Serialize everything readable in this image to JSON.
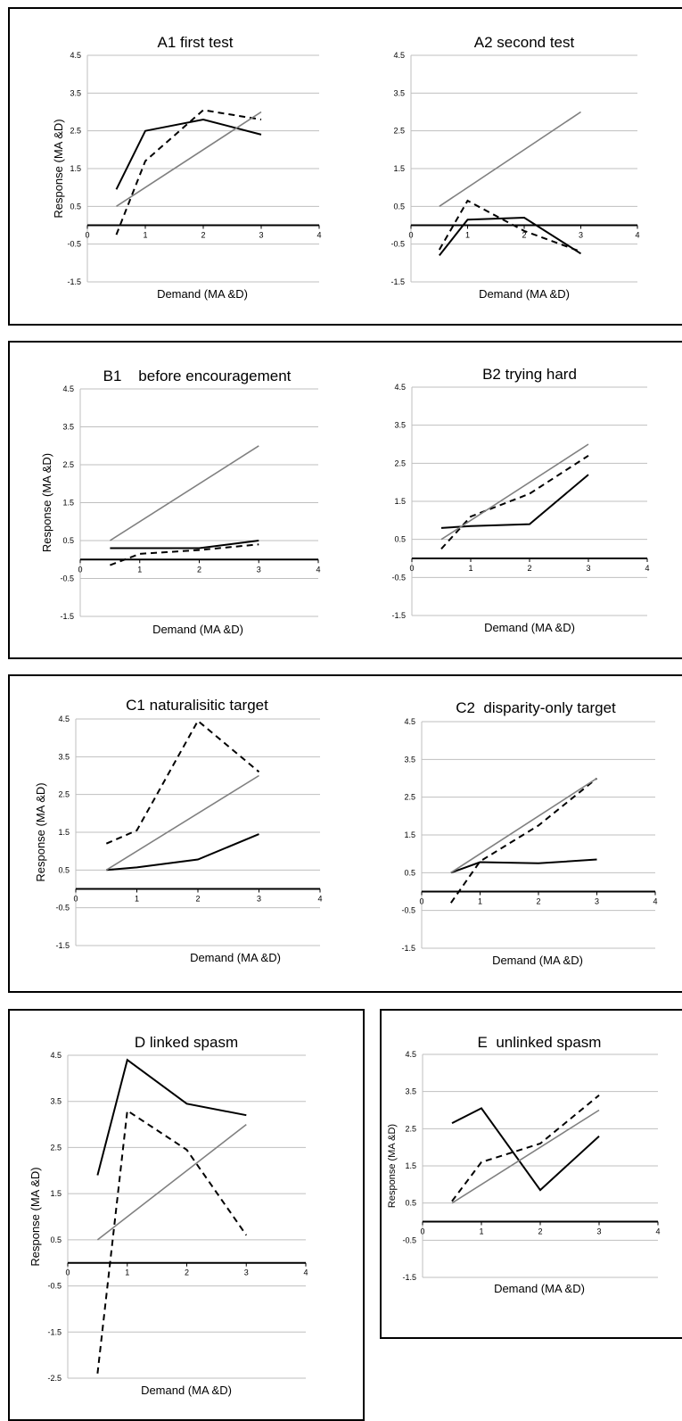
{
  "colors": {
    "series_solid": "#000000",
    "series_dashed": "#000000",
    "series_reference": "#808080",
    "gridline": "#bfbfbf"
  },
  "chart_data": [
    {
      "panel": "A",
      "type": "line",
      "title": "A1 first test",
      "xlabel": "Demand (MA &D)",
      "ylabel": "Response (MA &D)",
      "xlim": [
        0,
        4
      ],
      "ylim": [
        -1.5,
        4.5
      ],
      "x_ticks": [
        "0",
        "1",
        "2",
        "3",
        "4"
      ],
      "y_ticks": [
        "4.5",
        "3.5",
        "2.5",
        "1.5",
        "0.5",
        "-0.5",
        "-1.5"
      ],
      "series": [
        {
          "style": "solid",
          "x": [
            0.5,
            1,
            2,
            3
          ],
          "y": [
            0.95,
            2.5,
            2.8,
            2.4
          ]
        },
        {
          "style": "dashed",
          "x": [
            0.5,
            1,
            2,
            3
          ],
          "y": [
            -0.25,
            1.7,
            3.05,
            2.8
          ]
        },
        {
          "style": "reference",
          "x": [
            0.5,
            3
          ],
          "y": [
            0.5,
            3.0
          ]
        }
      ]
    },
    {
      "panel": "A",
      "type": "line",
      "title": "A2 second test",
      "xlabel": "Demand (MA &D)",
      "ylabel": "",
      "xlim": [
        0,
        4
      ],
      "ylim": [
        -1.5,
        4.5
      ],
      "x_ticks": [
        "0",
        "1",
        "2",
        "3",
        "4"
      ],
      "y_ticks": [
        "4.5",
        "3.5",
        "2.5",
        "1.5",
        "0.5",
        "-0.5",
        "-1.5"
      ],
      "series": [
        {
          "style": "solid",
          "x": [
            0.5,
            1,
            2,
            3
          ],
          "y": [
            -0.8,
            0.15,
            0.2,
            -0.75
          ]
        },
        {
          "style": "dashed",
          "x": [
            0.5,
            1,
            2,
            3
          ],
          "y": [
            -0.65,
            0.65,
            -0.15,
            -0.7
          ]
        },
        {
          "style": "reference",
          "x": [
            0.5,
            3
          ],
          "y": [
            0.5,
            3.0
          ]
        }
      ]
    },
    {
      "panel": "B",
      "type": "line",
      "title": "B1    before encouragement",
      "xlabel": "Demand (MA &D)",
      "ylabel": "Response (MA &D)",
      "xlim": [
        0,
        4
      ],
      "ylim": [
        -1.5,
        4.5
      ],
      "x_ticks": [
        "0",
        "1",
        "2",
        "3",
        "4"
      ],
      "y_ticks": [
        "4.5",
        "3.5",
        "2.5",
        "1.5",
        "0.5",
        "-0.5",
        "-1.5"
      ],
      "series": [
        {
          "style": "solid",
          "x": [
            0.5,
            1,
            2,
            3
          ],
          "y": [
            0.3,
            0.3,
            0.3,
            0.5
          ]
        },
        {
          "style": "dashed",
          "x": [
            0.5,
            1,
            2,
            3
          ],
          "y": [
            -0.15,
            0.15,
            0.25,
            0.4
          ]
        },
        {
          "style": "reference",
          "x": [
            0.5,
            3
          ],
          "y": [
            0.5,
            3.0
          ]
        }
      ]
    },
    {
      "panel": "B",
      "type": "line",
      "title": "B2 trying hard",
      "xlabel": "Demand (MA &D)",
      "ylabel": "",
      "xlim": [
        0,
        4
      ],
      "ylim": [
        -1.5,
        4.5
      ],
      "x_ticks": [
        "0",
        "1",
        "2",
        "3",
        "4"
      ],
      "y_ticks": [
        "4.5",
        "3.5",
        "2.5",
        "1.5",
        "0.5",
        "-0.5",
        "-1.5"
      ],
      "series": [
        {
          "style": "solid",
          "x": [
            0.5,
            1,
            2,
            3
          ],
          "y": [
            0.8,
            0.85,
            0.9,
            2.2
          ]
        },
        {
          "style": "dashed",
          "x": [
            0.5,
            1,
            2,
            3
          ],
          "y": [
            0.25,
            1.1,
            1.7,
            2.7
          ]
        },
        {
          "style": "reference",
          "x": [
            0.5,
            3
          ],
          "y": [
            0.5,
            3.0
          ]
        }
      ]
    },
    {
      "panel": "C",
      "type": "line",
      "title": "C1 naturalisitic target",
      "xlabel": "Demand (MA &D)",
      "ylabel": "Response (MA &D)",
      "xlim": [
        0,
        4
      ],
      "ylim": [
        -1.5,
        4.5
      ],
      "x_ticks": [
        "0",
        "1",
        "2",
        "3",
        "4"
      ],
      "y_ticks": [
        "4.5",
        "3.5",
        "2.5",
        "1.5",
        "0.5",
        "-0.5",
        "-1.5"
      ],
      "series": [
        {
          "style": "solid",
          "x": [
            0.5,
            1,
            2,
            3
          ],
          "y": [
            0.5,
            0.57,
            0.78,
            1.45
          ]
        },
        {
          "style": "dashed",
          "x": [
            0.5,
            1,
            2,
            3
          ],
          "y": [
            1.2,
            1.55,
            4.45,
            3.1
          ]
        },
        {
          "style": "reference",
          "x": [
            0.5,
            3
          ],
          "y": [
            0.5,
            3.0
          ]
        }
      ]
    },
    {
      "panel": "C",
      "type": "line",
      "title": "C2  disparity-only target",
      "xlabel": "Demand (MA &D)",
      "ylabel": "",
      "xlim": [
        0,
        4
      ],
      "ylim": [
        -1.5,
        4.5
      ],
      "x_ticks": [
        "0",
        "1",
        "2",
        "3",
        "4"
      ],
      "y_ticks": [
        "4.5",
        "3.5",
        "2.5",
        "1.5",
        "0.5",
        "-0.5",
        "-1.5"
      ],
      "series": [
        {
          "style": "solid",
          "x": [
            0.5,
            1,
            2,
            3
          ],
          "y": [
            0.5,
            0.78,
            0.75,
            0.85
          ]
        },
        {
          "style": "dashed",
          "x": [
            0.5,
            1,
            2,
            3
          ],
          "y": [
            -0.3,
            0.8,
            1.75,
            3.0
          ]
        },
        {
          "style": "reference",
          "x": [
            0.5,
            3
          ],
          "y": [
            0.5,
            3.0
          ]
        }
      ]
    },
    {
      "panel": "D",
      "type": "line",
      "title": "D linked spasm",
      "xlabel": "Demand (MA &D)",
      "ylabel": "Response (MA &D)",
      "xlim": [
        0,
        4
      ],
      "ylim": [
        -2.5,
        4.5
      ],
      "x_ticks": [
        "0",
        "1",
        "2",
        "3",
        "4"
      ],
      "y_ticks": [
        "4.5",
        "3.5",
        "2.5",
        "1.5",
        "0.5",
        "-0.5",
        "-1.5",
        "-2.5"
      ],
      "series": [
        {
          "style": "solid",
          "x": [
            0.5,
            1,
            2,
            3
          ],
          "y": [
            1.9,
            4.4,
            3.45,
            3.2
          ]
        },
        {
          "style": "dashed",
          "x": [
            0.5,
            1,
            2,
            3
          ],
          "y": [
            -2.4,
            3.3,
            2.45,
            0.6
          ]
        },
        {
          "style": "reference",
          "x": [
            0.5,
            3
          ],
          "y": [
            0.5,
            3.0
          ]
        }
      ]
    },
    {
      "panel": "E",
      "type": "line",
      "title": "E  unlinked spasm",
      "xlabel": "Demand (MA &D)",
      "ylabel": "Response (MA &D)",
      "xlim": [
        0,
        4
      ],
      "ylim": [
        -1.5,
        4.5
      ],
      "x_ticks": [
        "0",
        "1",
        "2",
        "3",
        "4"
      ],
      "y_ticks": [
        "4.5",
        "3.5",
        "2.5",
        "1.5",
        "0.5",
        "-0.5",
        "-1.5"
      ],
      "series": [
        {
          "style": "solid",
          "x": [
            0.5,
            1,
            2,
            3
          ],
          "y": [
            2.65,
            3.05,
            0.85,
            2.3
          ]
        },
        {
          "style": "dashed",
          "x": [
            0.5,
            1,
            2,
            3
          ],
          "y": [
            0.55,
            1.6,
            2.1,
            3.4
          ]
        },
        {
          "style": "reference",
          "x": [
            0.5,
            3
          ],
          "y": [
            0.5,
            3.0
          ]
        }
      ]
    }
  ]
}
